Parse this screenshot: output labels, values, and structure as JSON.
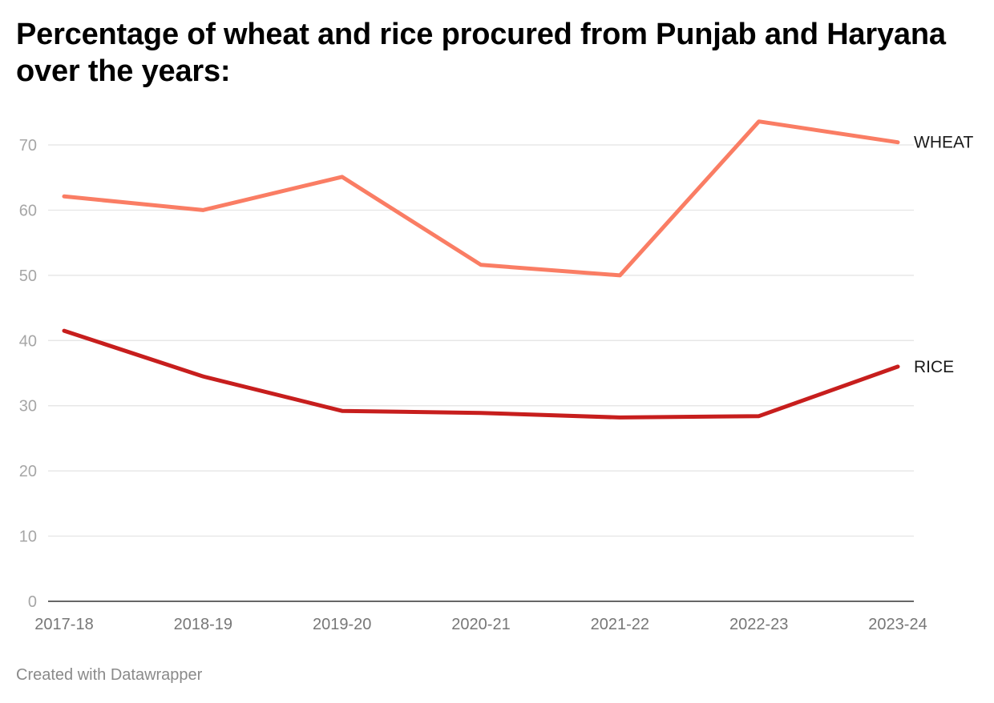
{
  "title": "Percentage of wheat and rice procured from Punjab and Haryana over the years:",
  "footer": "Created with Datawrapper",
  "chart_data": {
    "type": "line",
    "title": "Percentage of wheat and rice procured from Punjab and Haryana over the years:",
    "xlabel": "",
    "ylabel": "",
    "categories": [
      "2017-18",
      "2018-19",
      "2019-20",
      "2020-21",
      "2021-22",
      "2022-23",
      "2023-24"
    ],
    "ylim": [
      0,
      70
    ],
    "yticks": [
      0,
      10,
      20,
      30,
      40,
      50,
      60,
      70
    ],
    "grid": true,
    "legend": "inline-right",
    "series": [
      {
        "name": "WHEAT",
        "color": "#fa7d64",
        "values": [
          62.1,
          60.0,
          65.1,
          51.6,
          50.0,
          73.6,
          70.4
        ]
      },
      {
        "name": "RICE",
        "color": "#c71e1d",
        "values": [
          41.5,
          34.5,
          29.2,
          28.9,
          28.2,
          28.4,
          36.0
        ]
      }
    ]
  }
}
